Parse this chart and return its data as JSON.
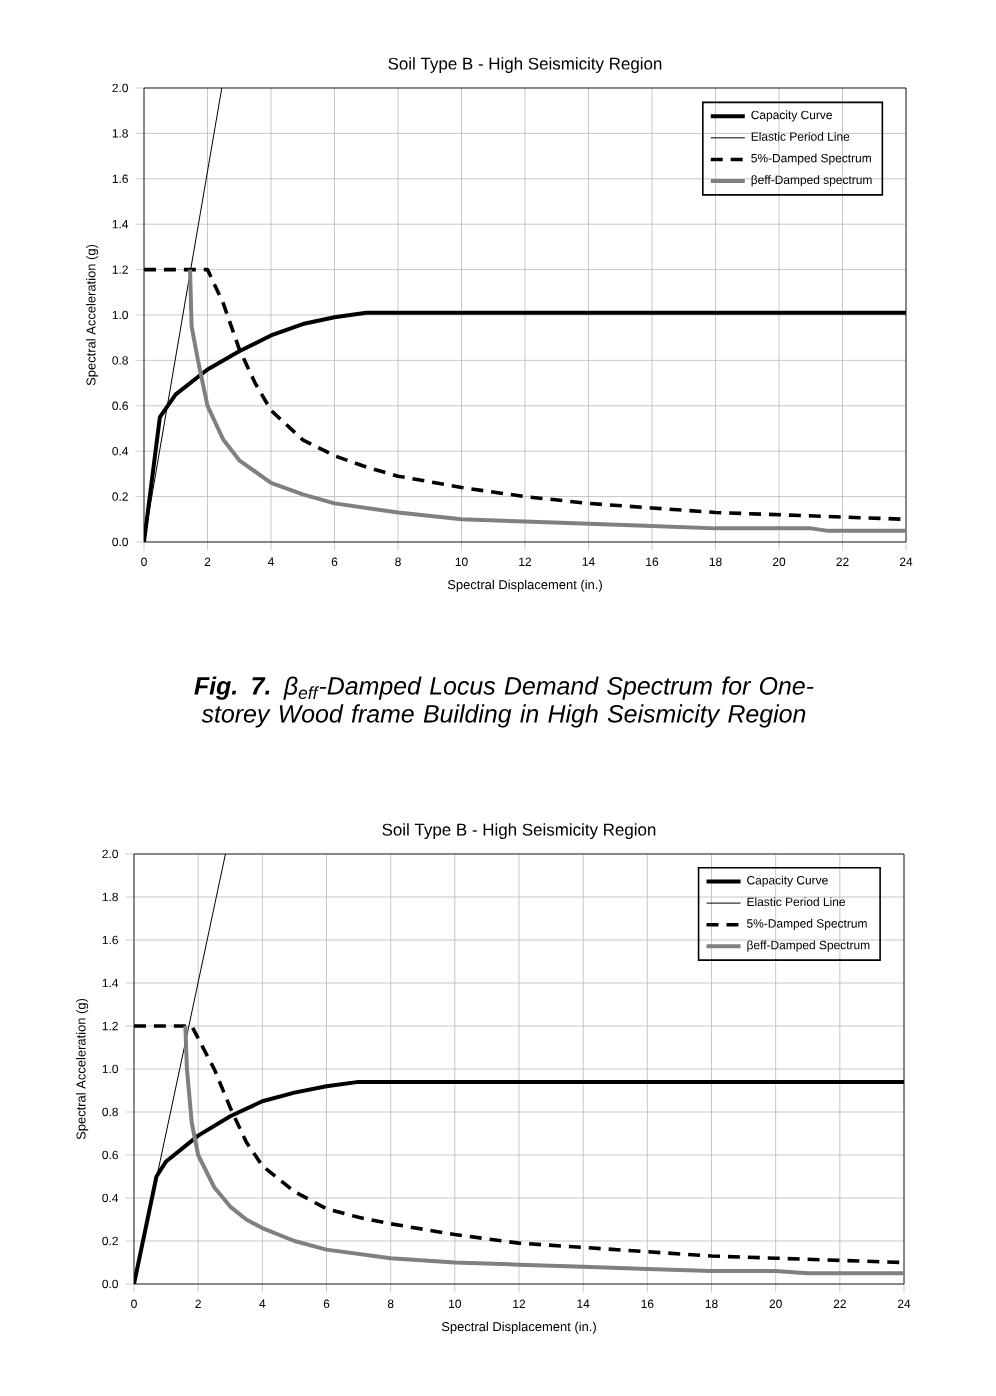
{
  "chart_data": [
    {
      "type": "line",
      "title": "Soil Type B - High Seismicity Region",
      "xlabel": "Spectral Displacement (in.)",
      "ylabel": "Spectral Acceleration (g)",
      "annotations": [
        "**Fig. 7.** β$_{eff}$-Damped Locus Demand Spectrum for One-storey Wood frame Building in High Seismicity Region"
      ],
      "xlim": [
        0,
        24
      ],
      "ylim": [
        0,
        2
      ],
      "xticks": [
        0,
        2,
        4,
        6,
        8,
        10,
        12,
        14,
        16,
        18,
        20,
        22,
        24
      ],
      "yticks": [
        {
          "value": 0,
          "label": "0.0"
        },
        {
          "value": 0.2,
          "label": "0.2"
        },
        {
          "value": 0.4,
          "label": "0.4"
        },
        {
          "value": 0.6,
          "label": "0.6"
        },
        {
          "value": 0.8,
          "label": "0.8"
        },
        {
          "value": 1,
          "label": "1.0"
        },
        {
          "value": 1.2,
          "label": "1.2"
        },
        {
          "value": 1.4,
          "label": "1.4"
        },
        {
          "value": 1.6,
          "label": "1.6"
        },
        {
          "value": 1.8,
          "label": "1.8"
        },
        {
          "value": 2,
          "label": "2.0"
        }
      ],
      "grid": true,
      "legend": "top right",
      "series": [
        {
          "name": "Capacity Curve",
          "color": "#000000",
          "line_style": "solid",
          "x": [
            0,
            0.5,
            1,
            2,
            3,
            4,
            5,
            6,
            7,
            24
          ],
          "values": [
            0,
            0.55,
            0.65,
            0.76,
            0.84,
            0.91,
            0.96,
            0.99,
            1.01,
            1.01
          ]
        },
        {
          "name": "Elastic Period Line",
          "color": "#000000",
          "line_style": "solid",
          "x": [
            0,
            2.45
          ],
          "values": [
            0,
            2.0
          ]
        },
        {
          "name": "5%-Damped Spectrum",
          "color": "#000000",
          "line_style": "dashed",
          "x": [
            0,
            2,
            2.5,
            3,
            3.5,
            4,
            5,
            6,
            7,
            8,
            10,
            12,
            14,
            16,
            18,
            20,
            22,
            24
          ],
          "values": [
            1.2,
            1.2,
            1.05,
            0.85,
            0.7,
            0.58,
            0.45,
            0.38,
            0.33,
            0.29,
            0.24,
            0.2,
            0.17,
            0.15,
            0.13,
            0.12,
            0.11,
            0.1
          ]
        },
        {
          "name": "βeff-Damped spectrum",
          "color": "#808080",
          "line_style": "solid",
          "x": [
            1.45,
            1.5,
            1.7,
            2,
            2.5,
            3,
            4,
            5,
            6,
            8,
            10,
            12,
            14,
            16,
            18,
            20,
            21,
            21.5,
            24
          ],
          "values": [
            1.2,
            0.95,
            0.8,
            0.6,
            0.45,
            0.36,
            0.26,
            0.21,
            0.17,
            0.13,
            0.1,
            0.09,
            0.08,
            0.07,
            0.06,
            0.06,
            0.06,
            0.05,
            0.05
          ]
        }
      ]
    },
    {
      "type": "line",
      "title": "Soil Type B - High Seismicity Region",
      "xlabel": "Spectral Displacement (in.)",
      "ylabel": "Spectral Acceleration (g)",
      "xlim": [
        0,
        24
      ],
      "ylim": [
        0,
        2
      ],
      "xticks": [
        0,
        2,
        4,
        6,
        8,
        10,
        12,
        14,
        16,
        18,
        20,
        22,
        24
      ],
      "yticks": [
        {
          "value": 0,
          "label": "0.0"
        },
        {
          "value": 0.2,
          "label": "0.2"
        },
        {
          "value": 0.4,
          "label": "0.4"
        },
        {
          "value": 0.6,
          "label": "0.6"
        },
        {
          "value": 0.8,
          "label": "0.8"
        },
        {
          "value": 1,
          "label": "1.0"
        },
        {
          "value": 1.2,
          "label": "1.2"
        },
        {
          "value": 1.4,
          "label": "1.4"
        },
        {
          "value": 1.6,
          "label": "1.6"
        },
        {
          "value": 1.8,
          "label": "1.8"
        },
        {
          "value": 2,
          "label": "2.0"
        }
      ],
      "grid": true,
      "legend": "top right",
      "series": [
        {
          "name": "Capacity Curve",
          "color": "#000000",
          "line_style": "solid",
          "x": [
            0,
            0.7,
            1,
            2,
            3,
            4,
            5,
            6,
            7,
            24
          ],
          "values": [
            0,
            0.5,
            0.57,
            0.69,
            0.78,
            0.85,
            0.89,
            0.92,
            0.94,
            0.94
          ]
        },
        {
          "name": "Elastic Period Line",
          "color": "#000000",
          "line_style": "solid",
          "x": [
            0,
            2.85
          ],
          "values": [
            0,
            2.0
          ]
        },
        {
          "name": "5%-Damped Spectrum",
          "color": "#000000",
          "line_style": "dashed",
          "x": [
            0,
            1.8,
            2.5,
            3,
            3.5,
            4,
            5,
            6,
            7,
            8,
            10,
            12,
            14,
            16,
            18,
            20,
            22,
            24
          ],
          "values": [
            1.2,
            1.2,
            1.0,
            0.82,
            0.66,
            0.55,
            0.43,
            0.35,
            0.31,
            0.28,
            0.23,
            0.19,
            0.17,
            0.15,
            0.13,
            0.12,
            0.11,
            0.1
          ]
        },
        {
          "name": "βeff-Damped Spectrum",
          "color": "#808080",
          "line_style": "solid",
          "x": [
            1.6,
            1.65,
            1.8,
            2,
            2.5,
            3,
            3.5,
            4,
            5,
            6,
            8,
            10,
            12,
            14,
            16,
            18,
            20,
            21,
            24
          ],
          "values": [
            1.2,
            1.0,
            0.75,
            0.6,
            0.45,
            0.36,
            0.3,
            0.26,
            0.2,
            0.16,
            0.12,
            0.1,
            0.09,
            0.08,
            0.07,
            0.06,
            0.06,
            0.05,
            0.05
          ]
        }
      ]
    }
  ]
}
